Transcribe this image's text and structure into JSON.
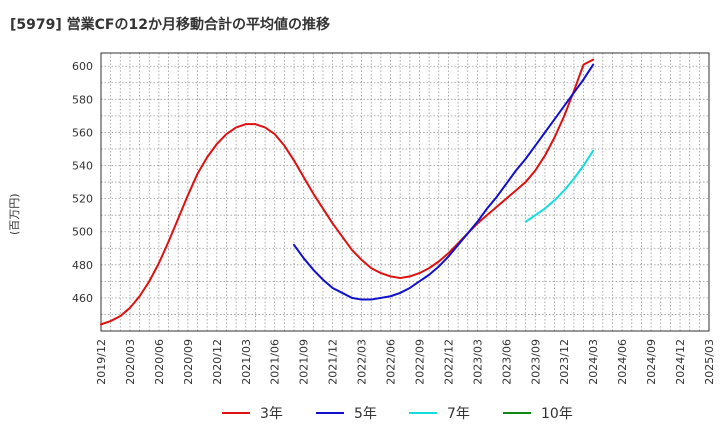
{
  "chart_data": {
    "type": "line",
    "title": "[5979]  営業CFの12か月移動合計の平均値の推移",
    "ylabel": "(百万円)",
    "xlabel": "",
    "ylim": [
      440,
      608
    ],
    "xlim": [
      "2019-12",
      "2025-03"
    ],
    "yticks": [
      460,
      480,
      500,
      520,
      540,
      560,
      580,
      600
    ],
    "xticks": [
      "2019/12",
      "2020/03",
      "2020/06",
      "2020/09",
      "2020/12",
      "2021/03",
      "2021/06",
      "2021/09",
      "2021/12",
      "2022/03",
      "2022/06",
      "2022/09",
      "2022/12",
      "2023/03",
      "2023/06",
      "2023/09",
      "2023/12",
      "2024/03",
      "2024/06",
      "2024/09",
      "2024/12",
      "2025/03"
    ],
    "grid": true,
    "legend_position": "bottom",
    "series": [
      {
        "name": "3年",
        "color": "#dd1111",
        "x": [
          "2019-12",
          "2020-01",
          "2020-02",
          "2020-03",
          "2020-04",
          "2020-05",
          "2020-06",
          "2020-07",
          "2020-08",
          "2020-09",
          "2020-10",
          "2020-11",
          "2020-12",
          "2021-01",
          "2021-02",
          "2021-03",
          "2021-04",
          "2021-05",
          "2021-06",
          "2021-07",
          "2021-08",
          "2021-09",
          "2021-10",
          "2021-11",
          "2021-12",
          "2022-01",
          "2022-02",
          "2022-03",
          "2022-04",
          "2022-05",
          "2022-06",
          "2022-07",
          "2022-08",
          "2022-09",
          "2022-10",
          "2022-11",
          "2022-12",
          "2023-01",
          "2023-02",
          "2023-03",
          "2023-04",
          "2023-05",
          "2023-06",
          "2023-07",
          "2023-08",
          "2023-09",
          "2023-10",
          "2023-11",
          "2023-12",
          "2024-01",
          "2024-02",
          "2024-03"
        ],
        "values": [
          444,
          446,
          449,
          454,
          461,
          470,
          481,
          494,
          508,
          522,
          535,
          545,
          553,
          559,
          563,
          565,
          565,
          563,
          559,
          552,
          543,
          533,
          523,
          514,
          505,
          497,
          489,
          483,
          478,
          475,
          473,
          472,
          473,
          475,
          478,
          482,
          487,
          493,
          499,
          505,
          510,
          515,
          520,
          525,
          530,
          537,
          546,
          557,
          570,
          585,
          601,
          604
        ]
      },
      {
        "name": "5年",
        "color": "#1111cc",
        "x": [
          "2021-08",
          "2021-09",
          "2021-10",
          "2021-11",
          "2021-12",
          "2022-01",
          "2022-02",
          "2022-03",
          "2022-04",
          "2022-05",
          "2022-06",
          "2022-07",
          "2022-08",
          "2022-09",
          "2022-10",
          "2022-11",
          "2022-12",
          "2023-01",
          "2023-02",
          "2023-03",
          "2023-04",
          "2023-05",
          "2023-06",
          "2023-07",
          "2023-08",
          "2023-09",
          "2023-10",
          "2023-11",
          "2023-12",
          "2024-01",
          "2024-02",
          "2024-03"
        ],
        "values": [
          492,
          484,
          477,
          471,
          466,
          463,
          460,
          459,
          459,
          460,
          461,
          463,
          466,
          470,
          474,
          479,
          485,
          492,
          499,
          506,
          514,
          521,
          529,
          537,
          544,
          552,
          560,
          568,
          576,
          584,
          592,
          601
        ]
      },
      {
        "name": "7年",
        "color": "#11dddd",
        "x": [
          "2023-08",
          "2023-09",
          "2023-10",
          "2023-11",
          "2023-12",
          "2024-01",
          "2024-02",
          "2024-03"
        ],
        "values": [
          506,
          510,
          514,
          519,
          525,
          532,
          540,
          549
        ]
      },
      {
        "name": "10年",
        "color": "#118811",
        "x": [],
        "values": []
      }
    ]
  }
}
